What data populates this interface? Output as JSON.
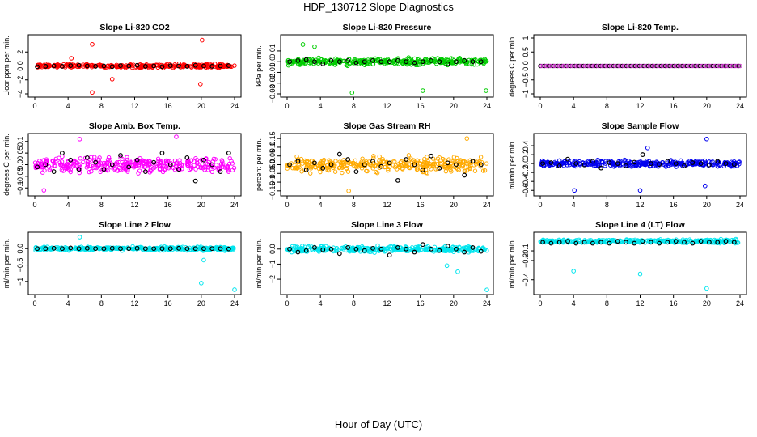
{
  "figure": {
    "title": "HDP_130712  Slope Diagnostics",
    "xlabel": "Hour of Day (UTC)"
  },
  "chart_data": [
    {
      "id": "co2",
      "type": "scatter",
      "title": "Slope Li-820 CO2",
      "ylabel": "Licor ppm per min.",
      "ylim": [
        -4,
        4
      ],
      "yticks": [
        -4,
        -2,
        0,
        2
      ],
      "xlim": [
        0,
        24
      ],
      "xticks": [
        0,
        4,
        8,
        12,
        16,
        20,
        24
      ],
      "color": "#ff0000",
      "spread": 0.35,
      "outliers": [
        [
          6.9,
          3.1
        ],
        [
          6.9,
          -3.8
        ],
        [
          20.1,
          3.7
        ],
        [
          19.9,
          -2.6
        ],
        [
          9.3,
          -1.9
        ],
        [
          4.4,
          1.1
        ]
      ],
      "hourly": [
        [
          0.3,
          -0.1
        ],
        [
          1.3,
          -0.05
        ],
        [
          2.3,
          0.0
        ],
        [
          3.3,
          -0.05
        ],
        [
          4.3,
          0.05
        ],
        [
          5.3,
          0.1
        ],
        [
          6.3,
          0.0
        ],
        [
          7.3,
          -0.05
        ],
        [
          8.3,
          0.0
        ],
        [
          9.3,
          -0.1
        ],
        [
          10.3,
          0.05
        ],
        [
          11.3,
          0.0
        ],
        [
          12.3,
          0.1
        ],
        [
          13.3,
          -0.05
        ],
        [
          14.3,
          0.0
        ],
        [
          15.3,
          -0.1
        ],
        [
          16.3,
          0.05
        ],
        [
          17.3,
          0.0
        ],
        [
          18.3,
          -0.05
        ],
        [
          19.3,
          0.1
        ],
        [
          20.3,
          0.0
        ],
        [
          21.3,
          -0.05
        ],
        [
          22.3,
          0.0
        ],
        [
          23.3,
          0.05
        ]
      ]
    },
    {
      "id": "pressure",
      "type": "scatter",
      "title": "Slope Li-820 Pressure",
      "ylabel": "kPa per min.",
      "ylim": [
        -0.03,
        0.022
      ],
      "yticks": [
        -0.03,
        -0.02,
        -0.01,
        0.0,
        0.01
      ],
      "xlim": [
        0,
        24
      ],
      "xticks": [
        0,
        4,
        8,
        12,
        16,
        20,
        24
      ],
      "color": "#00cc00",
      "spread": 0.0045,
      "outliers": [
        [
          7.8,
          -0.029
        ],
        [
          16.3,
          -0.027
        ],
        [
          23.9,
          -0.027
        ],
        [
          1.9,
          0.016
        ],
        [
          3.3,
          0.014
        ]
      ],
      "hourly": [
        [
          0.3,
          0.0
        ],
        [
          1.3,
          0.001
        ],
        [
          2.3,
          0.002
        ],
        [
          3.3,
          0.0
        ],
        [
          4.3,
          -0.002
        ],
        [
          5.3,
          0.001
        ],
        [
          6.3,
          0.0
        ],
        [
          7.3,
          0.001
        ],
        [
          8.3,
          -0.001
        ],
        [
          9.3,
          0.0
        ],
        [
          10.3,
          0.001
        ],
        [
          11.3,
          0.0
        ],
        [
          12.3,
          0.0
        ],
        [
          13.3,
          0.001
        ],
        [
          14.3,
          0.0
        ],
        [
          15.3,
          -0.001
        ],
        [
          16.3,
          0.0
        ],
        [
          17.3,
          0.001
        ],
        [
          18.3,
          0.0
        ],
        [
          19.3,
          -0.002
        ],
        [
          20.3,
          0.0
        ],
        [
          21.3,
          0.001
        ],
        [
          22.3,
          0.0
        ],
        [
          23.3,
          0.0
        ]
      ]
    },
    {
      "id": "temp",
      "type": "scatter",
      "title": "Slope Li-820 Temp.",
      "ylabel": "degrees C per min.",
      "ylim": [
        -1.0,
        1.0
      ],
      "yticks": [
        -1.0,
        -0.5,
        0.0,
        0.5,
        1.0
      ],
      "xlim": [
        0,
        24
      ],
      "xticks": [
        0,
        4,
        8,
        12,
        16,
        20,
        24
      ],
      "color": "#cc33cc",
      "spread": 0.0,
      "outliers": [],
      "hourly": []
    },
    {
      "id": "ambbox",
      "type": "scatter",
      "title": "Slope Amb. Box Temp.",
      "ylabel": "degrees C per min.",
      "ylim": [
        -0.12,
        0.12
      ],
      "yticks": [
        -0.1,
        -0.05,
        0.0,
        0.05,
        0.1
      ],
      "xlim": [
        0,
        24
      ],
      "xticks": [
        0,
        4,
        8,
        12,
        16,
        20,
        24
      ],
      "color": "#ff00ff",
      "spread": 0.045,
      "outliers": [
        [
          17.0,
          0.12
        ],
        [
          5.4,
          0.11
        ],
        [
          1.1,
          -0.11
        ]
      ],
      "hourly": [
        [
          0.3,
          -0.01
        ],
        [
          1.3,
          0.0
        ],
        [
          2.3,
          -0.03
        ],
        [
          3.3,
          0.05
        ],
        [
          4.3,
          0.02
        ],
        [
          5.3,
          -0.02
        ],
        [
          6.3,
          0.03
        ],
        [
          7.3,
          0.01
        ],
        [
          8.3,
          -0.02
        ],
        [
          9.3,
          0.0
        ],
        [
          10.3,
          0.04
        ],
        [
          11.3,
          -0.01
        ],
        [
          12.3,
          0.02
        ],
        [
          13.3,
          -0.03
        ],
        [
          14.3,
          0.01
        ],
        [
          15.3,
          0.05
        ],
        [
          16.3,
          0.0
        ],
        [
          17.3,
          -0.02
        ],
        [
          18.3,
          0.03
        ],
        [
          19.3,
          -0.07
        ],
        [
          20.3,
          0.02
        ],
        [
          21.3,
          0.0
        ],
        [
          22.3,
          -0.03
        ],
        [
          23.3,
          0.05
        ]
      ]
    },
    {
      "id": "rh",
      "type": "scatter",
      "title": "Slope Gas Stream RH",
      "ylabel": "percent per min.",
      "ylim": [
        -0.16,
        0.16
      ],
      "yticks": [
        -0.15,
        -0.1,
        -0.05,
        0.0,
        0.05,
        0.1,
        0.15
      ],
      "xlim": [
        0,
        24
      ],
      "xticks": [
        0,
        4,
        8,
        12,
        16,
        20,
        24
      ],
      "color": "#ffaa00",
      "spread": 0.06,
      "outliers": [
        [
          7.4,
          -0.15
        ],
        [
          21.6,
          0.15
        ]
      ],
      "hourly": [
        [
          0.3,
          0.0
        ],
        [
          1.3,
          0.02
        ],
        [
          2.3,
          -0.03
        ],
        [
          3.3,
          0.01
        ],
        [
          4.3,
          -0.02
        ],
        [
          5.3,
          0.0
        ],
        [
          6.3,
          0.06
        ],
        [
          7.3,
          0.03
        ],
        [
          8.3,
          -0.04
        ],
        [
          9.3,
          0.0
        ],
        [
          10.3,
          0.02
        ],
        [
          11.3,
          -0.01
        ],
        [
          12.3,
          0.01
        ],
        [
          13.3,
          -0.09
        ],
        [
          14.3,
          0.03
        ],
        [
          15.3,
          0.0
        ],
        [
          16.3,
          -0.03
        ],
        [
          17.3,
          0.05
        ],
        [
          18.3,
          -0.02
        ],
        [
          19.3,
          0.01
        ],
        [
          20.3,
          0.0
        ],
        [
          21.3,
          -0.06
        ],
        [
          22.3,
          0.02
        ],
        [
          23.3,
          0.0
        ]
      ]
    },
    {
      "id": "sampleflow",
      "type": "scatter",
      "title": "Slope Sample Flow",
      "ylabel": "ml/min per min.",
      "ylim": [
        -0.65,
        0.6
      ],
      "yticks": [
        -0.6,
        -0.4,
        -0.2,
        0.0,
        0.2,
        0.4
      ],
      "xlim": [
        0,
        24
      ],
      "xticks": [
        0,
        4,
        8,
        12,
        16,
        20,
        24
      ],
      "color": "#0000ee",
      "spread": 0.09,
      "outliers": [
        [
          4.1,
          -0.6
        ],
        [
          12.0,
          -0.6
        ],
        [
          20.0,
          0.55
        ],
        [
          19.8,
          -0.5
        ],
        [
          12.9,
          0.35
        ]
      ],
      "hourly": [
        [
          0.3,
          0.0
        ],
        [
          1.3,
          0.02
        ],
        [
          2.3,
          -0.05
        ],
        [
          3.3,
          0.1
        ],
        [
          4.3,
          0.0
        ],
        [
          5.3,
          -0.03
        ],
        [
          6.3,
          0.05
        ],
        [
          7.3,
          -0.1
        ],
        [
          8.3,
          0.02
        ],
        [
          9.3,
          0.0
        ],
        [
          10.3,
          -0.05
        ],
        [
          11.3,
          0.03
        ],
        [
          12.3,
          0.2
        ],
        [
          13.3,
          0.0
        ],
        [
          14.3,
          -0.02
        ],
        [
          15.3,
          0.05
        ],
        [
          16.3,
          0.0
        ],
        [
          17.3,
          -0.05
        ],
        [
          18.3,
          0.02
        ],
        [
          19.3,
          0.0
        ],
        [
          20.3,
          -0.03
        ],
        [
          21.3,
          0.05
        ],
        [
          22.3,
          0.0
        ],
        [
          23.3,
          -0.02
        ]
      ]
    },
    {
      "id": "line2",
      "type": "scatter",
      "title": "Slope Line 2 Flow",
      "ylabel": "ml/min per min.",
      "ylim": [
        -1.3,
        0.4
      ],
      "yticks": [
        -1.0,
        -0.5,
        0.0
      ],
      "xlim": [
        0,
        24
      ],
      "xticks": [
        0,
        4,
        8,
        12,
        16,
        20,
        24
      ],
      "color": "#00e5ee",
      "spread": 0.08,
      "outliers": [
        [
          20.0,
          -1.05
        ],
        [
          24.0,
          -1.25
        ],
        [
          20.3,
          -0.35
        ],
        [
          5.4,
          0.35
        ]
      ],
      "hourly": [
        [
          0.3,
          0.0
        ],
        [
          1.3,
          0.0
        ],
        [
          2.3,
          0.01
        ],
        [
          3.3,
          0.0
        ],
        [
          4.3,
          0.02
        ],
        [
          5.3,
          0.0
        ],
        [
          6.3,
          0.01
        ],
        [
          7.3,
          0.0
        ],
        [
          8.3,
          0.0
        ],
        [
          9.3,
          0.01
        ],
        [
          10.3,
          0.0
        ],
        [
          11.3,
          0.0
        ],
        [
          12.3,
          0.01
        ],
        [
          13.3,
          0.0
        ],
        [
          14.3,
          0.0
        ],
        [
          15.3,
          0.0
        ],
        [
          16.3,
          0.0
        ],
        [
          17.3,
          0.01
        ],
        [
          18.3,
          0.0
        ],
        [
          19.3,
          0.0
        ],
        [
          20.3,
          0.0
        ],
        [
          21.3,
          0.0
        ],
        [
          22.3,
          0.0
        ],
        [
          23.3,
          -0.01
        ]
      ]
    },
    {
      "id": "line3",
      "type": "scatter",
      "title": "Slope Line 3 Flow",
      "ylabel": "ml/min per min.",
      "ylim": [
        -2.8,
        0.9
      ],
      "yticks": [
        -2,
        -1,
        0
      ],
      "xlim": [
        0,
        24
      ],
      "xticks": [
        0,
        4,
        8,
        12,
        16,
        20,
        24
      ],
      "color": "#00e5ee",
      "spread": 0.25,
      "outliers": [
        [
          24.0,
          -2.7
        ],
        [
          20.5,
          -1.5
        ],
        [
          19.2,
          -1.1
        ]
      ],
      "hourly": [
        [
          0.3,
          0.0
        ],
        [
          1.3,
          -0.2
        ],
        [
          2.3,
          -0.1
        ],
        [
          3.3,
          0.1
        ],
        [
          4.3,
          -0.05
        ],
        [
          5.3,
          0.0
        ],
        [
          6.3,
          -0.3
        ],
        [
          7.3,
          0.1
        ],
        [
          8.3,
          0.0
        ],
        [
          9.3,
          -0.1
        ],
        [
          10.3,
          0.05
        ],
        [
          11.3,
          0.0
        ],
        [
          12.3,
          -0.4
        ],
        [
          13.3,
          0.1
        ],
        [
          14.3,
          0.0
        ],
        [
          15.3,
          -0.2
        ],
        [
          16.3,
          0.3
        ],
        [
          17.3,
          0.0
        ],
        [
          18.3,
          -0.1
        ],
        [
          19.3,
          0.2
        ],
        [
          20.3,
          0.0
        ],
        [
          21.3,
          -0.2
        ],
        [
          22.3,
          0.1
        ],
        [
          23.3,
          -0.15
        ]
      ]
    },
    {
      "id": "line4",
      "type": "scatter",
      "title": "Slope Line 4 (LT) Flow",
      "ylabel": "ml/min per min.",
      "ylim": [
        -0.52,
        0.06
      ],
      "yticks": [
        -0.4,
        -0.2,
        -0.1
      ],
      "xlim": [
        0,
        24
      ],
      "xticks": [
        0,
        4,
        8,
        12,
        16,
        20,
        24
      ],
      "color": "#00e5ee",
      "spread": 0.025,
      "outliers": [
        [
          4.0,
          -0.31
        ],
        [
          12.0,
          -0.34
        ],
        [
          20.0,
          -0.49
        ]
      ],
      "hourly": [
        [
          0.3,
          -0.01
        ],
        [
          1.3,
          -0.02
        ],
        [
          2.3,
          -0.01
        ],
        [
          3.3,
          0.0
        ],
        [
          4.3,
          -0.02
        ],
        [
          5.3,
          -0.01
        ],
        [
          6.3,
          -0.02
        ],
        [
          7.3,
          -0.01
        ],
        [
          8.3,
          -0.02
        ],
        [
          9.3,
          0.0
        ],
        [
          10.3,
          -0.01
        ],
        [
          11.3,
          -0.02
        ],
        [
          12.3,
          0.0
        ],
        [
          13.3,
          -0.01
        ],
        [
          14.3,
          -0.02
        ],
        [
          15.3,
          -0.01
        ],
        [
          16.3,
          0.0
        ],
        [
          17.3,
          -0.01
        ],
        [
          18.3,
          -0.02
        ],
        [
          19.3,
          0.0
        ],
        [
          20.3,
          -0.01
        ],
        [
          21.3,
          -0.01
        ],
        [
          22.3,
          0.0
        ],
        [
          23.3,
          -0.01
        ]
      ]
    }
  ]
}
